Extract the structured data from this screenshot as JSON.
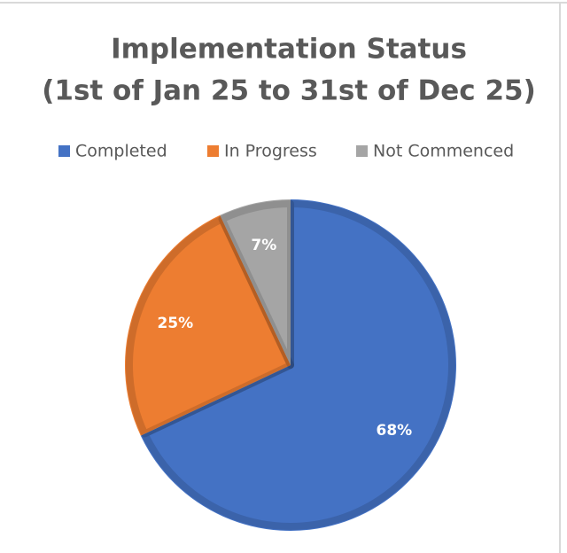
{
  "chart_data": {
    "type": "pie",
    "title": "Implementation Status",
    "subtitle": "(1st of Jan 25 to 31st of Dec 25)",
    "categories": [
      "Completed",
      "In Progress",
      "Not Commenced"
    ],
    "values": [
      68,
      25,
      7
    ],
    "value_labels": [
      "68%",
      "25%",
      "7%"
    ],
    "colors": [
      "#4472c4",
      "#ed7d31",
      "#a5a5a5"
    ],
    "legend": "top"
  }
}
